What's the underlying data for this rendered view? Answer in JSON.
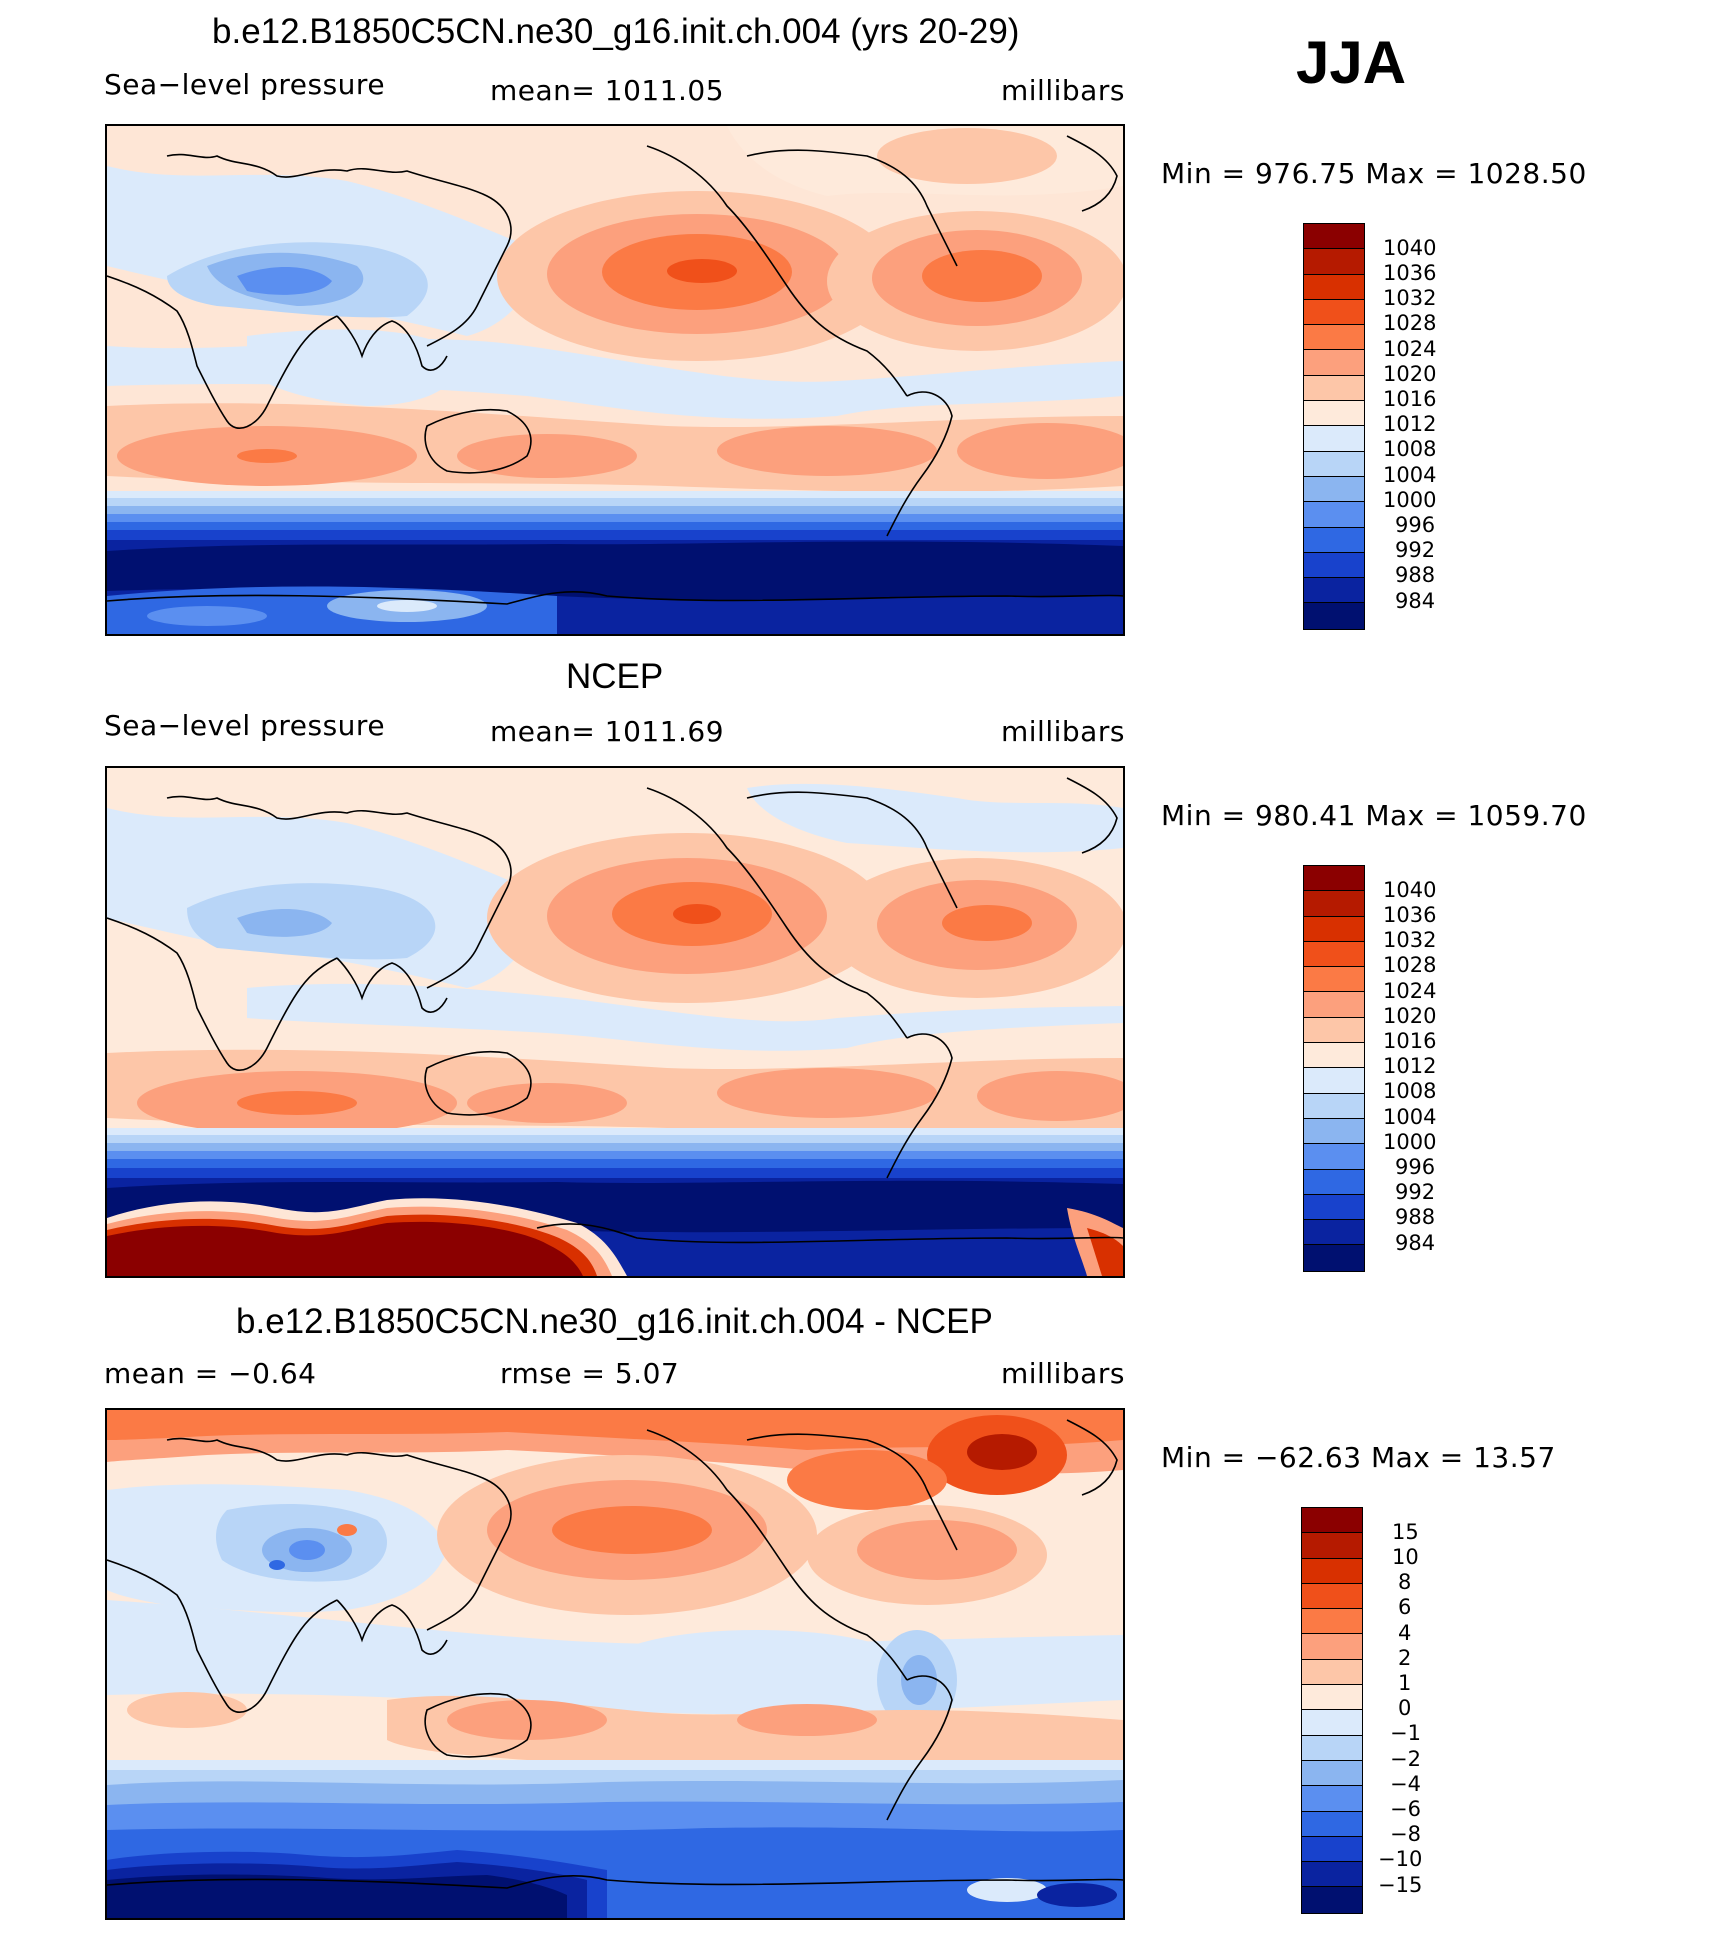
{
  "season": "JJA",
  "panels": [
    {
      "title": "b.e12.B1850C5CN.ne30_g16.init.ch.004 (yrs 20-29)",
      "variable": "Sea−level pressure",
      "stat": "mean=  1011.05",
      "units": "millibars",
      "minmax": "Min  =  976.75  Max  =  1028.50",
      "map_field": "model",
      "colorbar": {
        "labels": [
          "1040",
          "1036",
          "1032",
          "1028",
          "1024",
          "1020",
          "1016",
          "1012",
          "1008",
          "1004",
          "1000",
          "996",
          "992",
          "988",
          "984"
        ],
        "colors": [
          "#8b0000",
          "#b51a00",
          "#d83000",
          "#f0501a",
          "#fb7a45",
          "#fca07d",
          "#fdc6a8",
          "#feeadb",
          "#dbeafb",
          "#b8d5f7",
          "#8bb5f0",
          "#5b8ff0",
          "#2f68e3",
          "#1842cc",
          "#0a23a0",
          "#001070"
        ]
      }
    },
    {
      "title": "NCEP",
      "variable": "Sea−level pressure",
      "stat": "mean=  1011.69",
      "units": "millibars",
      "minmax": "Min  =  980.41  Max  =  1059.70",
      "map_field": "obs",
      "colorbar": {
        "labels": [
          "1040",
          "1036",
          "1032",
          "1028",
          "1024",
          "1020",
          "1016",
          "1012",
          "1008",
          "1004",
          "1000",
          "996",
          "992",
          "988",
          "984"
        ],
        "colors": [
          "#8b0000",
          "#b51a00",
          "#d83000",
          "#f0501a",
          "#fb7a45",
          "#fca07d",
          "#fdc6a8",
          "#feeadb",
          "#dbeafb",
          "#b8d5f7",
          "#8bb5f0",
          "#5b8ff0",
          "#2f68e3",
          "#1842cc",
          "#0a23a0",
          "#001070"
        ]
      }
    },
    {
      "title": "b.e12.B1850C5CN.ne30_g16.init.ch.004 - NCEP",
      "variable": "mean  =    −0.64",
      "stat": "rmse  =     5.07",
      "units": "millibars",
      "minmax": "Min  =  −62.63  Max  =    13.57",
      "map_field": "diff",
      "colorbar": {
        "labels": [
          "15",
          "10",
          "8",
          "6",
          "4",
          "2",
          "1",
          "0",
          "−1",
          "−2",
          "−4",
          "−6",
          "−8",
          "−10",
          "−15"
        ],
        "colors": [
          "#8b0000",
          "#b51a00",
          "#d83000",
          "#f0501a",
          "#fb7a45",
          "#fca07d",
          "#fdc6a8",
          "#feeadb",
          "#dbeafb",
          "#b8d5f7",
          "#8bb5f0",
          "#5b8ff0",
          "#2f68e3",
          "#1842cc",
          "#0a23a0",
          "#001070"
        ]
      }
    }
  ]
}
